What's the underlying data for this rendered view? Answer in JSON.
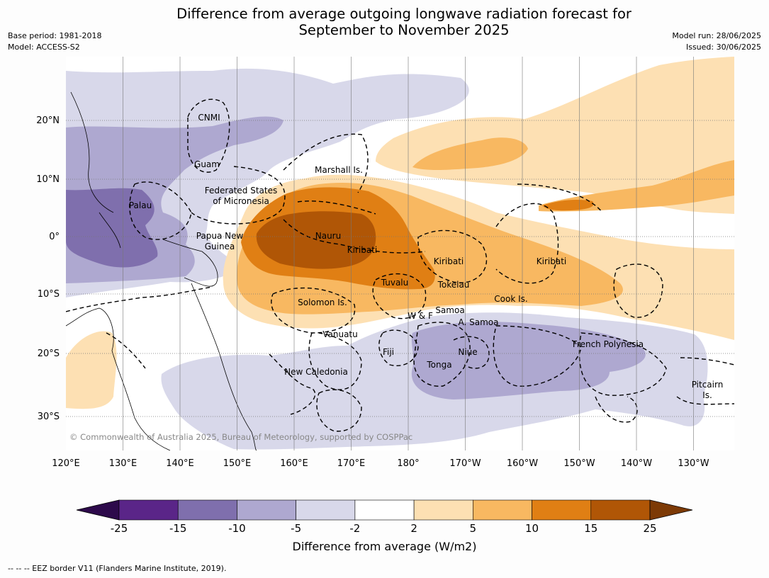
{
  "title": {
    "line1": "Difference from average outgoing longwave radiation forecast for",
    "line2": "September to November 2025"
  },
  "meta": {
    "base_period": "Base period: 1981-2018",
    "model": "Model: ACCESS-S2",
    "model_run": "Model run: 28/06/2025",
    "issued": "Issued: 30/06/2025"
  },
  "map": {
    "lon_labels": [
      "120°E",
      "130°E",
      "140°E",
      "150°E",
      "160°E",
      "170°E",
      "180°",
      "170°W",
      "160°W",
      "150°W",
      "140°W",
      "130°W"
    ],
    "lat_labels": [
      "20°N",
      "10°N",
      "0°",
      "10°S",
      "20°S",
      "30°S"
    ],
    "copyright": "© Commonwealth of Australia 2025, Bureau of Meteorology, supported by COSPPac",
    "regions": [
      "CNMI",
      "Guam",
      "Marshall Is.",
      "Federated States",
      "of Micronesia",
      "Palau",
      "Papua New",
      "Guinea",
      "Nauru",
      "Kiribati",
      "Kiribati",
      "Kiribati",
      "Tuvalu",
      "Tokelau",
      "Solomon Is.",
      "Cook Is.",
      "W & F",
      "Samoa",
      "A. Samoa",
      "Vanuatu",
      "Fiji",
      "Niue",
      "Tonga",
      "French Polynesia",
      "New Caledonia",
      "Pitcairn",
      "Is."
    ]
  },
  "colorbar": {
    "ticks": [
      "-25",
      "-15",
      "-10",
      "-5",
      "-2",
      "2",
      "5",
      "10",
      "15",
      "25"
    ],
    "colors": [
      "#2d0a4b",
      "#5a2588",
      "#7f6fad",
      "#aea8d0",
      "#d8d8ea",
      "#ffffff",
      "#fde0b3",
      "#f8b861",
      "#e07f14",
      "#b05606",
      "#7d3a06"
    ],
    "label": "Difference from average (W/m2)"
  },
  "footnote": "--  --  -- EEZ border V11 (Flanders Marine Institute, 2019)."
}
